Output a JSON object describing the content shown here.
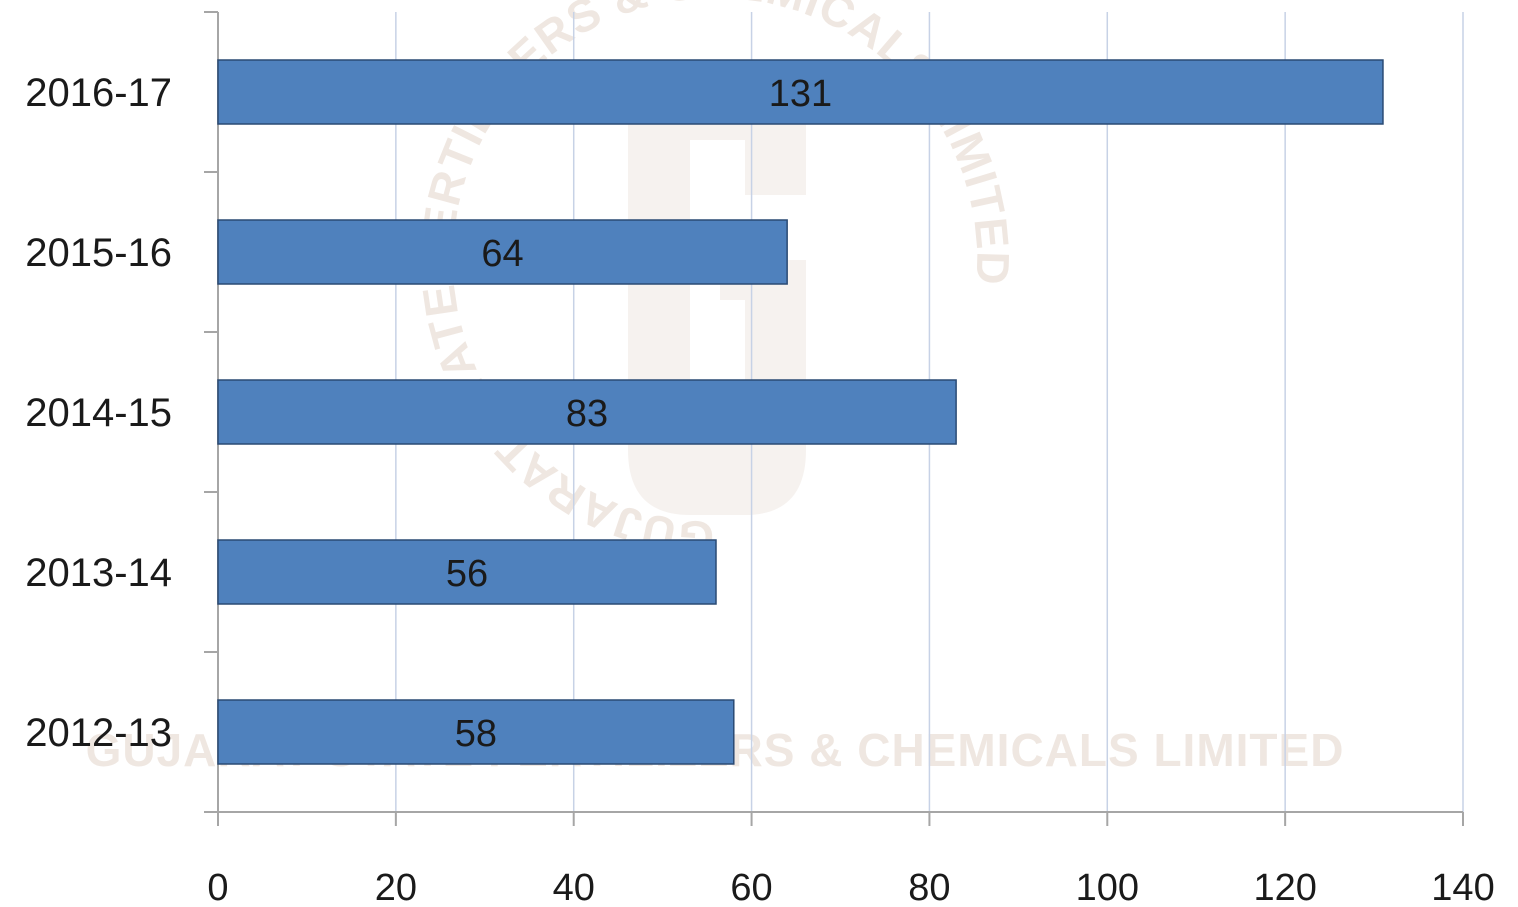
{
  "chart_data": {
    "type": "bar",
    "orientation": "horizontal",
    "categories": [
      "2016-17",
      "2015-16",
      "2014-15",
      "2013-14",
      "2012-13"
    ],
    "values": [
      131,
      64,
      83,
      56,
      58
    ],
    "xlim": [
      0,
      140
    ],
    "xticks": [
      0,
      20,
      40,
      60,
      80,
      100,
      120,
      140
    ],
    "grid": true,
    "data_labels": true,
    "bar_color": "#4f81bd",
    "bar_edge_color": "#2a4a74",
    "grid_color": "#c7d2e6",
    "axis_color": "#a6a6a6"
  },
  "watermark": {
    "ring_text": "GUJARAT STATE FERTILIZERS & CHEMICALS LIMITED",
    "bottom_text": "GUJARAT STATE FERTILIZERS & CHEMICALS LIMITED",
    "color": "#efe7e1"
  }
}
